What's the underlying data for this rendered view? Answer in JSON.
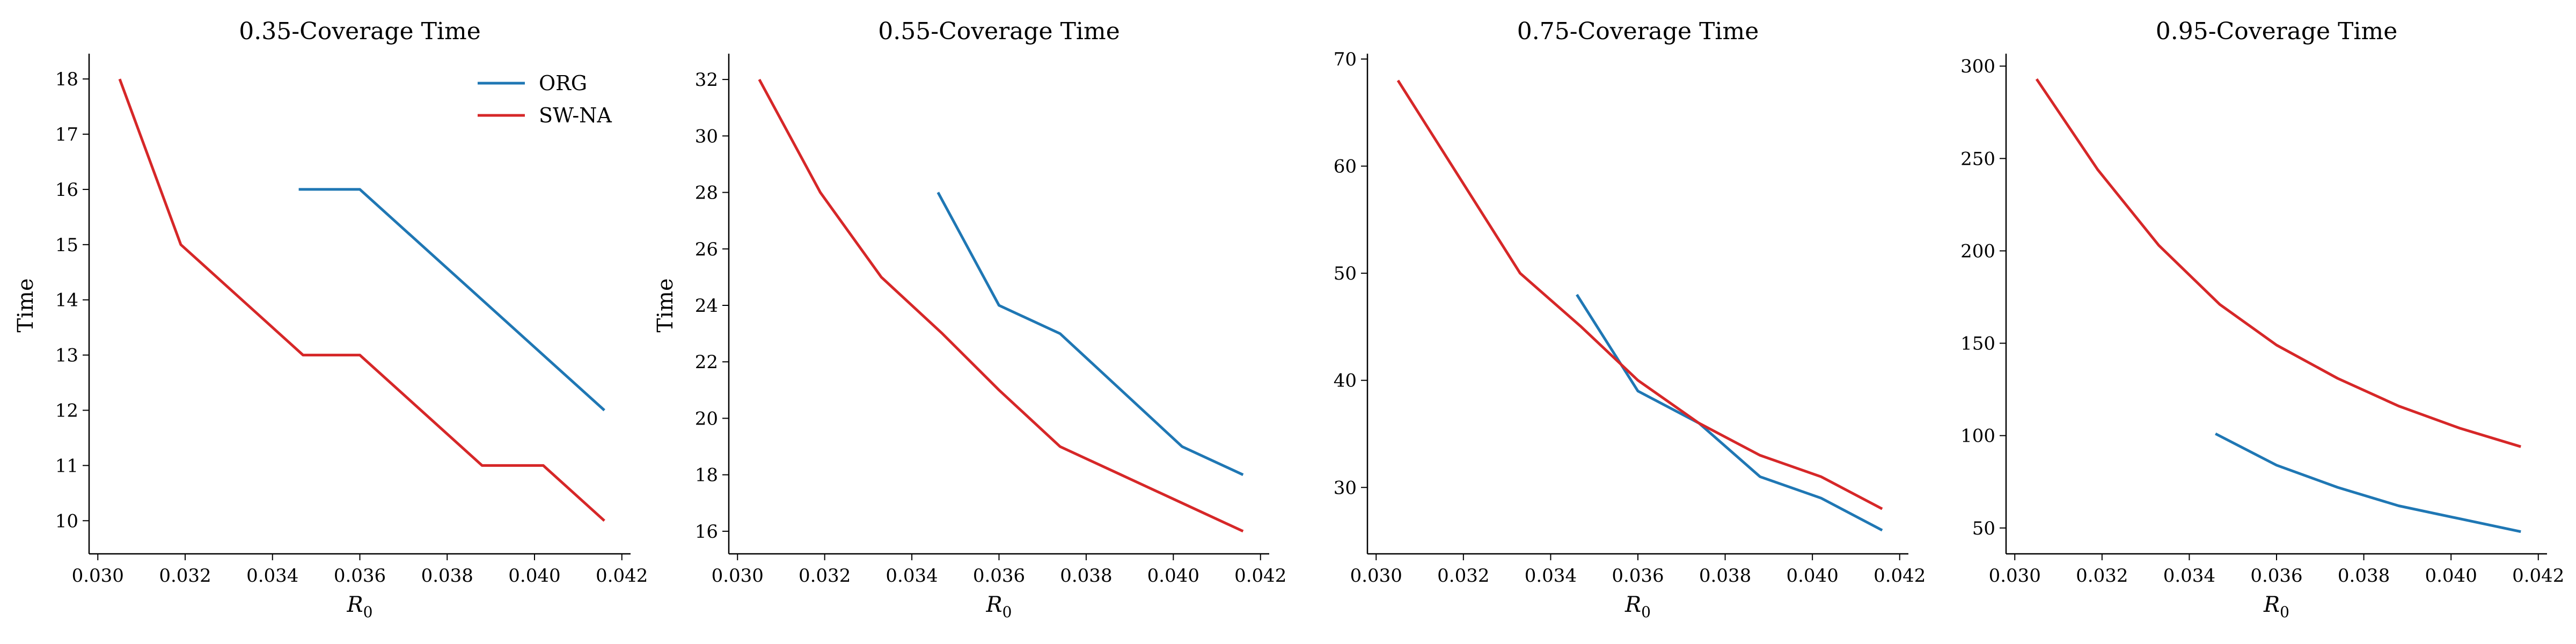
{
  "figure": {
    "colors": {
      "ORG": "#1f77b4",
      "SW-NA": "#d62728"
    }
  },
  "chart_data": [
    {
      "type": "line",
      "title": "0.35-Coverage Time",
      "xlabel": "R",
      "xlabel_subscript": "0",
      "ylabel": "Time",
      "xlim": [
        0.0298,
        0.0422
      ],
      "ylim": [
        9.4,
        18.4
      ],
      "xticks": [
        0.03,
        0.032,
        0.034,
        0.036,
        0.038,
        0.04,
        0.042
      ],
      "xtick_labels": [
        "0.030",
        "0.032",
        "0.034",
        "0.036",
        "0.038",
        "0.040",
        "0.042"
      ],
      "yticks": [
        10,
        11,
        12,
        13,
        14,
        15,
        16,
        17,
        18
      ],
      "ytick_labels": [
        "10",
        "11",
        "12",
        "13",
        "14",
        "15",
        "16",
        "17",
        "18"
      ],
      "legend": {
        "position": "top-right",
        "entries": [
          "ORG",
          "SW-NA"
        ]
      },
      "series": [
        {
          "name": "ORG",
          "color": "#1f77b4",
          "x": [
            0.0346,
            0.036,
            0.0416
          ],
          "y": [
            16,
            16,
            12
          ]
        },
        {
          "name": "SW-NA",
          "color": "#d62728",
          "x": [
            0.0305,
            0.0319,
            0.0333,
            0.0347,
            0.036,
            0.0374,
            0.0388,
            0.0402,
            0.0416
          ],
          "y": [
            18,
            15,
            14,
            13,
            13,
            12,
            11,
            11,
            10
          ]
        }
      ]
    },
    {
      "type": "line",
      "title": "0.55-Coverage Time",
      "xlabel": "R",
      "xlabel_subscript": "0",
      "ylabel": "Time",
      "xlim": [
        0.0298,
        0.0422
      ],
      "ylim": [
        15.2,
        32.8
      ],
      "xticks": [
        0.03,
        0.032,
        0.034,
        0.036,
        0.038,
        0.04,
        0.042
      ],
      "xtick_labels": [
        "0.030",
        "0.032",
        "0.034",
        "0.036",
        "0.038",
        "0.040",
        "0.042"
      ],
      "yticks": [
        16,
        18,
        20,
        22,
        24,
        26,
        28,
        30,
        32
      ],
      "ytick_labels": [
        "16",
        "18",
        "20",
        "22",
        "24",
        "26",
        "28",
        "30",
        "32"
      ],
      "legend": null,
      "series": [
        {
          "name": "ORG",
          "color": "#1f77b4",
          "x": [
            0.0346,
            0.036,
            0.0374,
            0.0388,
            0.0402,
            0.0416
          ],
          "y": [
            28,
            24,
            23,
            21,
            19,
            18
          ]
        },
        {
          "name": "SW-NA",
          "color": "#d62728",
          "x": [
            0.0305,
            0.0319,
            0.0333,
            0.0347,
            0.036,
            0.0374,
            0.0388,
            0.0402,
            0.0416
          ],
          "y": [
            32,
            28,
            25,
            23,
            21,
            19,
            18,
            17,
            16
          ]
        }
      ]
    },
    {
      "type": "line",
      "title": "0.75-Coverage Time",
      "xlabel": "R",
      "xlabel_subscript": "0",
      "ylabel": "",
      "xlim": [
        0.0298,
        0.0422
      ],
      "ylim": [
        23.8,
        70.2
      ],
      "xticks": [
        0.03,
        0.032,
        0.034,
        0.036,
        0.038,
        0.04,
        0.042
      ],
      "xtick_labels": [
        "0.030",
        "0.032",
        "0.034",
        "0.036",
        "0.038",
        "0.040",
        "0.042"
      ],
      "yticks": [
        30,
        40,
        50,
        60,
        70
      ],
      "ytick_labels": [
        "30",
        "40",
        "50",
        "60",
        "70"
      ],
      "legend": null,
      "series": [
        {
          "name": "ORG",
          "color": "#1f77b4",
          "x": [
            0.0346,
            0.036,
            0.0374,
            0.0388,
            0.0402,
            0.0416
          ],
          "y": [
            48,
            39,
            36,
            31,
            29,
            26
          ]
        },
        {
          "name": "SW-NA",
          "color": "#d62728",
          "x": [
            0.0305,
            0.0319,
            0.0333,
            0.0347,
            0.036,
            0.0374,
            0.0388,
            0.0402,
            0.0416
          ],
          "y": [
            68,
            59,
            50,
            45,
            40,
            36,
            33,
            31,
            28
          ]
        }
      ]
    },
    {
      "type": "line",
      "title": "0.95-Coverage Time",
      "xlabel": "R",
      "xlabel_subscript": "0",
      "ylabel": "",
      "xlim": [
        0.0298,
        0.0422
      ],
      "ylim": [
        36,
        305
      ],
      "xticks": [
        0.03,
        0.032,
        0.034,
        0.036,
        0.038,
        0.04,
        0.042
      ],
      "xtick_labels": [
        "0.030",
        "0.032",
        "0.034",
        "0.036",
        "0.038",
        "0.040",
        "0.042"
      ],
      "yticks": [
        50,
        100,
        150,
        200,
        250,
        300
      ],
      "ytick_labels": [
        "50",
        "100",
        "150",
        "200",
        "250",
        "300"
      ],
      "legend": null,
      "series": [
        {
          "name": "ORG",
          "color": "#1f77b4",
          "x": [
            0.0346,
            0.036,
            0.0374,
            0.0388,
            0.0402,
            0.0416
          ],
          "y": [
            101,
            84,
            72,
            62,
            55,
            48
          ]
        },
        {
          "name": "SW-NA",
          "color": "#d62728",
          "x": [
            0.0305,
            0.0319,
            0.0333,
            0.0347,
            0.036,
            0.0374,
            0.0388,
            0.0402,
            0.0416
          ],
          "y": [
            293,
            244,
            203,
            171,
            149,
            131,
            116,
            104,
            94
          ]
        }
      ]
    }
  ]
}
